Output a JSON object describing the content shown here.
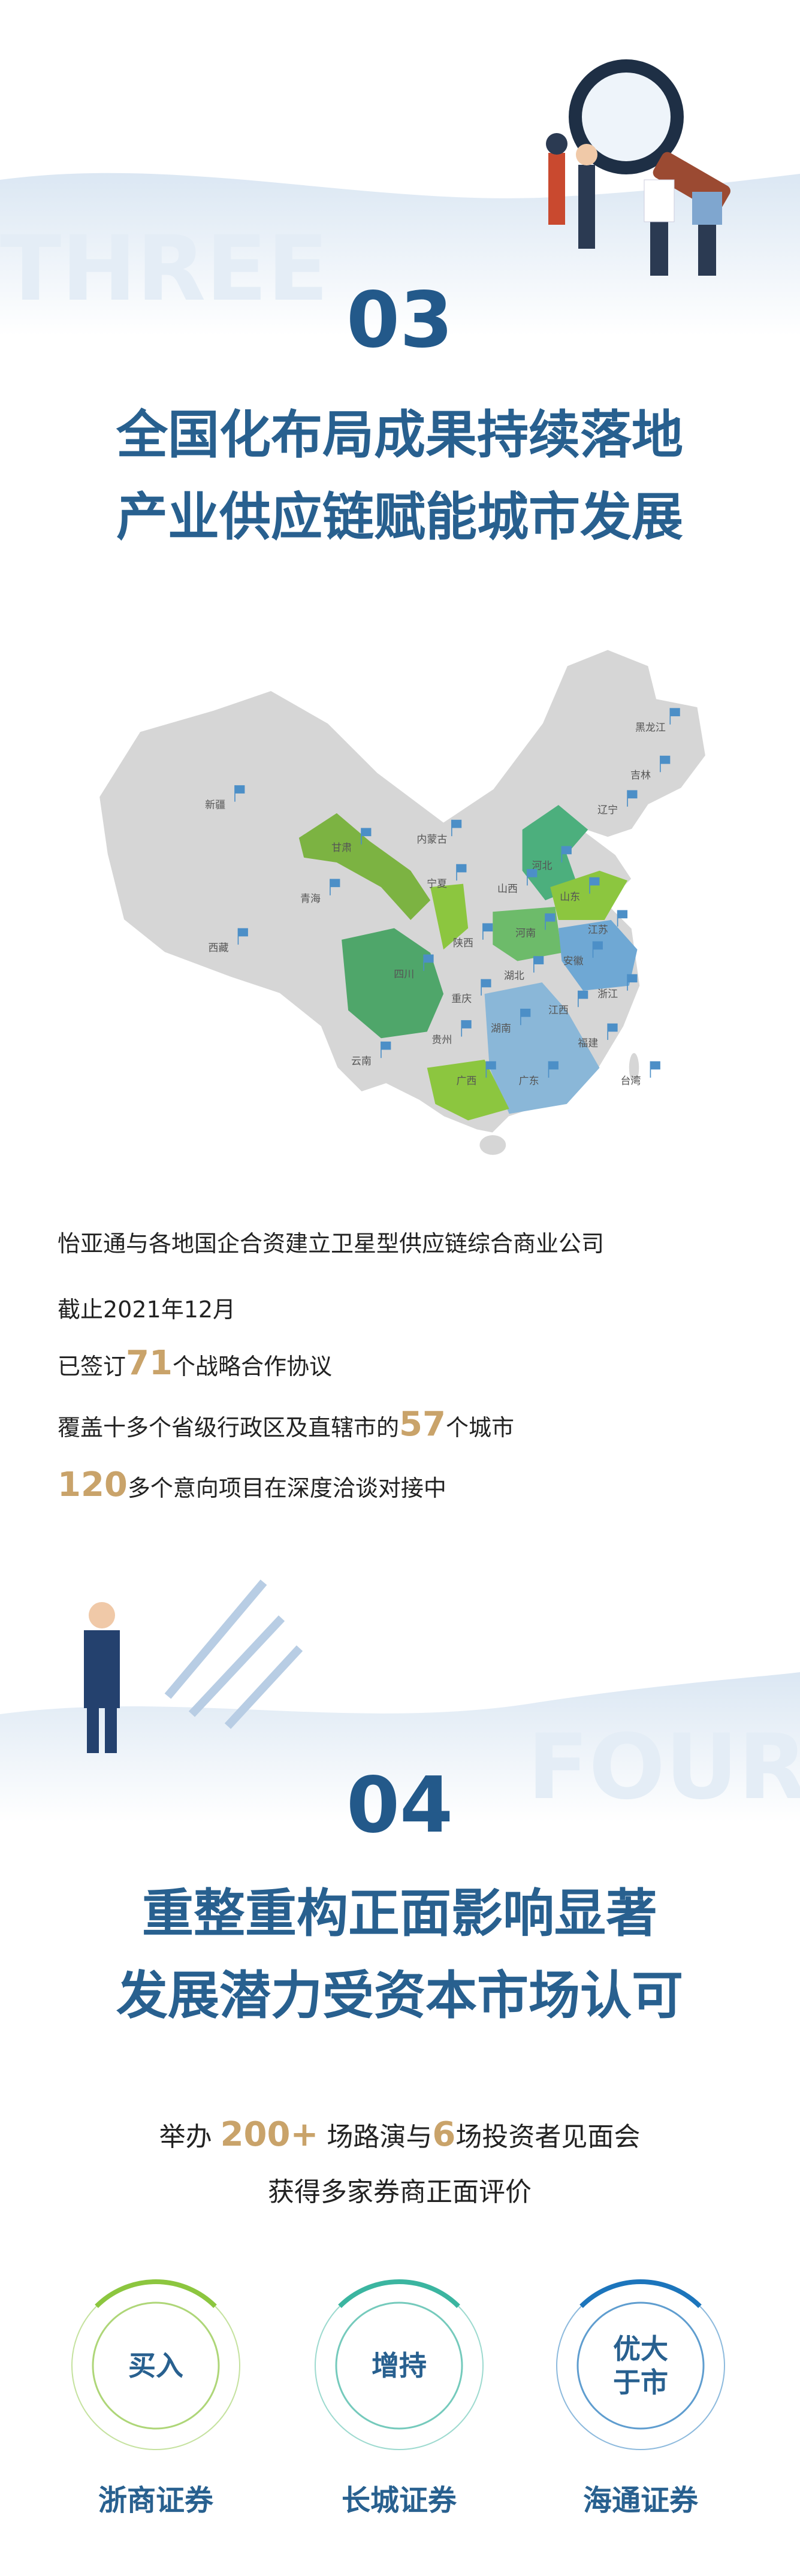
{
  "section3": {
    "bg_word": "THREE",
    "number": "03",
    "title_lines": [
      "全国化布局成果持续落地",
      "产业供应链赋能城市发展"
    ],
    "map_labels": [
      "黑龙江",
      "吉林",
      "辽宁",
      "新疆",
      "内蒙古",
      "甘肃",
      "宁夏",
      "河北",
      "青海",
      "山西",
      "山东",
      "西藏",
      "陕西",
      "河南",
      "江苏",
      "安徽",
      "四川",
      "重庆",
      "湖北",
      "浙江",
      "江西",
      "贵州",
      "湖南",
      "福建",
      "云南",
      "广西",
      "广东",
      "台湾"
    ],
    "lines": [
      [
        "怡亚通与各地国企合资建立卫星型供应链综合商业公司"
      ],
      [
        "截止2021年12月"
      ],
      [
        "已签订",
        "71",
        "个战略合作协议"
      ],
      [
        "覆盖十多个省级行政区及直辖市的",
        "57",
        "个城市"
      ],
      [
        "120",
        "多个意向项目在深度洽谈对接中"
      ]
    ]
  },
  "section4": {
    "bg_word": "FOUR",
    "number": "04",
    "title_lines": [
      "重整重构正面影响显著",
      "发展潜力受资本市场认可"
    ],
    "lines": [
      [
        "举办 ",
        "200+",
        " 场路演与",
        "6",
        "场投资者见面会"
      ],
      [
        "获得多家券商正面评价"
      ]
    ],
    "ratings": [
      {
        "rating": [
          "买入"
        ],
        "broker": "浙商证券"
      },
      {
        "rating": [
          "增持"
        ],
        "broker": "长城证券"
      },
      {
        "rating": [
          "优大",
          "于市"
        ],
        "broker": "海通证券"
      }
    ]
  }
}
